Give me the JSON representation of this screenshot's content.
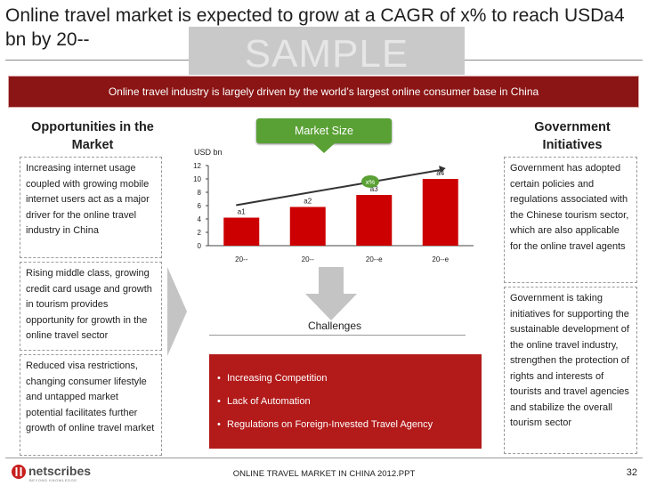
{
  "title": "Online travel market is expected to grow at a CAGR of x% to reach USDa4 bn by 20--",
  "watermark": "SAMPLE",
  "banner": "Online travel  industry is largely driven by the world’s largest online consumer base in China",
  "opportunities": {
    "heading": "Opportunities in the Market",
    "items": [
      "Increasing internet usage coupled with growing mobile internet users act as a major driver for the online travel industry in China",
      "Rising middle class, growing credit card usage and  growth in tourism provides opportunity for growth in the online travel sector",
      "Reduced visa restrictions, changing consumer lifestyle and untapped market potential facilitates further growth of online travel market"
    ]
  },
  "government": {
    "heading": "Government Initiatives",
    "items": [
      "Government has adopted certain policies and regulations associated with the Chinese tourism sector, which are also applicable for the online travel agents",
      "Government is taking initiatives for supporting the sustainable development of the online travel industry, strengthen the protection of rights and interests of tourists and travel agencies and stabilize the overall tourism sector"
    ]
  },
  "market_size_label": "Market Size",
  "chart_data": {
    "type": "bar",
    "ylabel": "USD bn",
    "ylim": [
      0,
      12
    ],
    "yticks": [
      0,
      2,
      4,
      6,
      8,
      10,
      12
    ],
    "categories": [
      "20--",
      "20--",
      "20--e",
      "20--e"
    ],
    "values": [
      4.2,
      5.8,
      7.6,
      10
    ],
    "data_labels": [
      "a1",
      "a2",
      "a3",
      "a4"
    ],
    "cagr_label": "x%",
    "bar_color": "#cc0000"
  },
  "challenges": {
    "label": "Challenges",
    "items": [
      "Increasing Competition",
      "Lack of Automation",
      "Regulations on Foreign-Invested Travel Agency"
    ]
  },
  "footer": {
    "logo_text": "netscribes",
    "logo_tagline": "BEYOND KNOWLEDGE",
    "center_text": "ONLINE TRAVEL MARKET IN CHINA 2012.PPT",
    "page_number": "32"
  },
  "colors": {
    "banner": "#8b1414",
    "challenge_box": "#b31a1a",
    "market_size_button": "#5aa135",
    "bar": "#cc0000",
    "cagr_bubble": "#5aa135"
  }
}
